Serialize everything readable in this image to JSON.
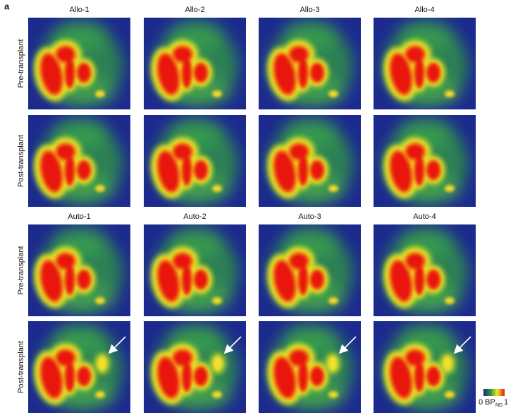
{
  "panel_label": "a",
  "groups": [
    {
      "columns": [
        "Allo-1",
        "Allo-2",
        "Allo-3",
        "Allo-4"
      ],
      "rows": [
        "Pre-transplant",
        "Post-transplant"
      ]
    },
    {
      "columns": [
        "Auto-1",
        "Auto-2",
        "Auto-3",
        "Auto-4"
      ],
      "rows": [
        "Pre-transplant",
        "Post-transplant"
      ]
    }
  ],
  "colorbar": {
    "min": 0,
    "label": "BP",
    "subscript": "ND",
    "max": 1
  }
}
